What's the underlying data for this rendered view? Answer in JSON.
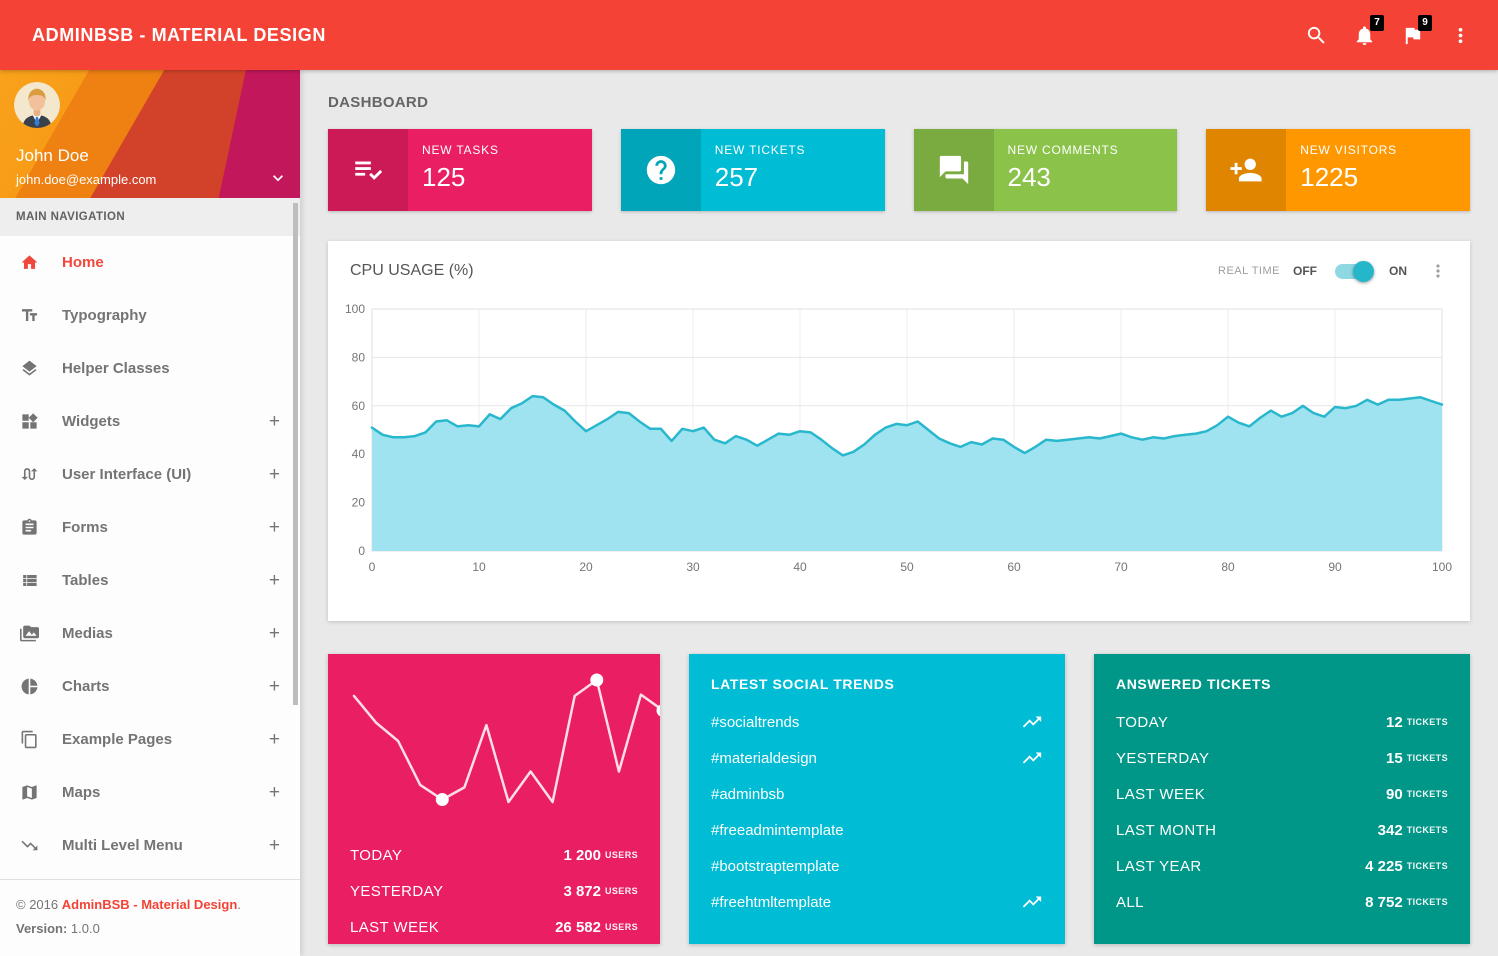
{
  "header": {
    "title": "ADMINBSB - MATERIAL DESIGN",
    "icons": [
      "search-icon",
      "bell-icon",
      "flag-icon",
      "more-vert-icon"
    ],
    "notifications_badge": "7",
    "flags_badge": "9"
  },
  "sidebar": {
    "user": {
      "name": "John Doe",
      "email": "john.doe@example.com"
    },
    "nav_label": "MAIN NAVIGATION",
    "items": [
      {
        "label": "Home",
        "icon": "home-icon",
        "active": true,
        "expandable": false
      },
      {
        "label": "Typography",
        "icon": "typography-icon",
        "active": false,
        "expandable": false
      },
      {
        "label": "Helper Classes",
        "icon": "layers-icon",
        "active": false,
        "expandable": false
      },
      {
        "label": "Widgets",
        "icon": "widgets-icon",
        "active": false,
        "expandable": true
      },
      {
        "label": "User Interface (UI)",
        "icon": "swap-calls-icon",
        "active": false,
        "expandable": true
      },
      {
        "label": "Forms",
        "icon": "clipboard-icon",
        "active": false,
        "expandable": true
      },
      {
        "label": "Tables",
        "icon": "table-list-icon",
        "active": false,
        "expandable": true
      },
      {
        "label": "Medias",
        "icon": "media-icon",
        "active": false,
        "expandable": true
      },
      {
        "label": "Charts",
        "icon": "pie-chart-icon",
        "active": false,
        "expandable": true
      },
      {
        "label": "Example Pages",
        "icon": "pages-icon",
        "active": false,
        "expandable": true
      },
      {
        "label": "Maps",
        "icon": "map-icon",
        "active": false,
        "expandable": true
      },
      {
        "label": "Multi Level Menu",
        "icon": "multilevel-icon",
        "active": false,
        "expandable": true
      }
    ],
    "footer": {
      "copyright": "© 2016",
      "brand": "AdminBSB - Material Design",
      "suffix": ".",
      "version_label": "Version:",
      "version": "1.0.0"
    }
  },
  "page": {
    "title": "DASHBOARD"
  },
  "info_boxes": [
    {
      "title": "NEW TASKS",
      "value": "125",
      "icon": "playlist-check-icon",
      "color": "#E91E63"
    },
    {
      "title": "NEW TICKETS",
      "value": "257",
      "icon": "help-icon",
      "color": "#00BCD4"
    },
    {
      "title": "NEW COMMENTS",
      "value": "243",
      "icon": "forum-icon",
      "color": "#8BC34A"
    },
    {
      "title": "NEW VISITORS",
      "value": "1225",
      "icon": "person-add-icon",
      "color": "#FF9800"
    }
  ],
  "cpu_card": {
    "title": "CPU USAGE (%)",
    "realtime_label": "REAL TIME",
    "off_label": "OFF",
    "on_label": "ON",
    "toggle_state": "on",
    "accent": "#00BCD4",
    "menu_icon": "more-vert-icon"
  },
  "chart_data": [
    {
      "type": "area",
      "title": "CPU USAGE (%)",
      "xlabel": "",
      "ylabel": "",
      "xlim": [
        0,
        100
      ],
      "ylim": [
        0,
        100
      ],
      "x_ticks": [
        0,
        10,
        20,
        30,
        40,
        50,
        60,
        70,
        80,
        90,
        100
      ],
      "y_ticks": [
        0,
        20,
        40,
        60,
        80,
        100
      ],
      "grid": true,
      "line_color": "#29b7cd",
      "fill_color": "#9fe3f0",
      "x_step": 1,
      "values": [
        51,
        48,
        47,
        47,
        47.5,
        49,
        53.5,
        54,
        51.5,
        52,
        51.5,
        56.5,
        54.5,
        59,
        61,
        64,
        63.5,
        60.5,
        58,
        53.5,
        49.5,
        52,
        54.5,
        57.5,
        57,
        53.5,
        50.5,
        50.5,
        45.5,
        50.5,
        49.5,
        51,
        46,
        44.5,
        47.5,
        46,
        43.5,
        46,
        48.5,
        48,
        49.5,
        49,
        46,
        42.5,
        39.5,
        41,
        44,
        48,
        51,
        52.5,
        52,
        53.5,
        50,
        46.5,
        44.5,
        43,
        45,
        44,
        46.5,
        46,
        43,
        40.5,
        43,
        46,
        45.5,
        46,
        46.5,
        47,
        46.5,
        47.5,
        48.5,
        47,
        46,
        47,
        46.5,
        47.5,
        48,
        48.5,
        49.5,
        52,
        55.5,
        53,
        51.5,
        55,
        58,
        55.5,
        57,
        60,
        57,
        55.5,
        59.5,
        59,
        60,
        62.5,
        60.5,
        62.5,
        62.5,
        63,
        63.5,
        62,
        60.5
      ]
    },
    {
      "type": "line",
      "title": "Visitors sparkline",
      "line_color": "#ffffff",
      "dot_color": "#ffffff",
      "ylim": [
        0,
        100
      ],
      "values": [
        87,
        65,
        50,
        14,
        2,
        12,
        63,
        0,
        25,
        0,
        87,
        100,
        25,
        88,
        75
      ],
      "dot_indices": [
        4,
        11,
        14
      ]
    }
  ],
  "visitors_card": {
    "color": "#E91E63",
    "rows": [
      {
        "label": "TODAY",
        "value": "1 200",
        "unit": "USERS"
      },
      {
        "label": "YESTERDAY",
        "value": "3 872",
        "unit": "USERS"
      },
      {
        "label": "LAST WEEK",
        "value": "26 582",
        "unit": "USERS"
      }
    ]
  },
  "social_card": {
    "title": "LATEST SOCIAL TRENDS",
    "color": "#00BCD4",
    "trend_icon": "trending-up-icon",
    "items": [
      {
        "tag": "#socialtrends",
        "trending": true
      },
      {
        "tag": "#materialdesign",
        "trending": true
      },
      {
        "tag": "#adminbsb",
        "trending": false
      },
      {
        "tag": "#freeadmintemplate",
        "trending": false
      },
      {
        "tag": "#bootstraptemplate",
        "trending": false
      },
      {
        "tag": "#freehtmltemplate",
        "trending": true
      }
    ]
  },
  "tickets_card": {
    "title": "ANSWERED TICKETS",
    "color": "#009688",
    "rows": [
      {
        "label": "TODAY",
        "value": "12",
        "unit": "TICKETS"
      },
      {
        "label": "YESTERDAY",
        "value": "15",
        "unit": "TICKETS"
      },
      {
        "label": "LAST WEEK",
        "value": "90",
        "unit": "TICKETS"
      },
      {
        "label": "LAST MONTH",
        "value": "342",
        "unit": "TICKETS"
      },
      {
        "label": "LAST YEAR",
        "value": "4 225",
        "unit": "TICKETS"
      },
      {
        "label": "ALL",
        "value": "8 752",
        "unit": "TICKETS"
      }
    ]
  }
}
